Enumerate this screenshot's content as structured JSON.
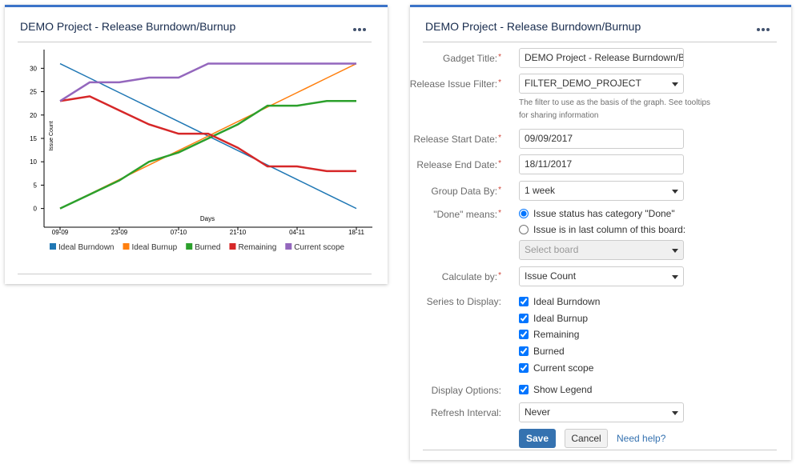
{
  "left_gadget": {
    "title": "DEMO Project - Release Burndown/Burnup"
  },
  "chart_data": {
    "type": "line",
    "x_label": "Days",
    "y_label": "Issue Count",
    "categories": [
      "09-09",
      null,
      "23-09",
      null,
      "07-10",
      null,
      "21-10",
      null,
      "04-11",
      null,
      "18-11"
    ],
    "ylim": [
      -4,
      34
    ],
    "yticks": [
      0,
      5,
      10,
      15,
      20,
      25,
      30
    ],
    "legend": "bottom",
    "series": [
      {
        "name": "Ideal Burndown",
        "color": "#1f77b4",
        "values": [
          31,
          27.9,
          24.8,
          21.7,
          18.6,
          15.5,
          12.4,
          9.3,
          6.2,
          3.1,
          0
        ]
      },
      {
        "name": "Ideal Burnup",
        "color": "#ff7f0e",
        "values": [
          0,
          3.1,
          6.2,
          9.3,
          12.4,
          15.5,
          18.6,
          21.7,
          24.8,
          27.9,
          31
        ]
      },
      {
        "name": "Burned",
        "color": "#2ca02c",
        "values": [
          0,
          3,
          6,
          10,
          12,
          15,
          18,
          22,
          22,
          23,
          23
        ]
      },
      {
        "name": "Remaining",
        "color": "#d62728",
        "values": [
          23,
          24,
          21,
          18,
          16,
          16,
          13,
          9,
          9,
          8,
          8
        ]
      },
      {
        "name": "Current scope",
        "color": "#9467bd",
        "values": [
          23,
          27,
          27,
          28,
          28,
          31,
          31,
          31,
          31,
          31,
          31
        ]
      }
    ]
  },
  "right_gadget": {
    "title": "DEMO Project - Release Burndown/Burnup",
    "required_marker": "*",
    "gadget_title": {
      "label": "Gadget Title:",
      "value": "DEMO Project - Release Burndown/Burnup"
    },
    "issue_filter": {
      "label": "Release Issue Filter:",
      "value": "FILTER_DEMO_PROJECT",
      "help": [
        "The filter to use as the basis of the graph. See tooltips",
        "for sharing information"
      ]
    },
    "start_date": {
      "label": "Release Start Date:",
      "value": "09/09/2017"
    },
    "end_date": {
      "label": "Release End Date:",
      "value": "18/11/2017"
    },
    "group_by": {
      "label": "Group Data By:",
      "value": "1 week"
    },
    "done_means": {
      "label": "\"Done\" means:",
      "options": [
        "Issue status has category \"Done\"",
        "Issue is in last column of this board:"
      ],
      "board_placeholder": "Select board"
    },
    "calculate_by": {
      "label": "Calculate by:",
      "value": "Issue Count"
    },
    "series_to_display": {
      "label": "Series to Display:",
      "options": [
        "Ideal Burndown",
        "Ideal Burnup",
        "Remaining",
        "Burned",
        "Current scope"
      ]
    },
    "display_options": {
      "label": "Display Options:",
      "option": "Show Legend"
    },
    "refresh_interval": {
      "label": "Refresh Interval:",
      "value": "Never"
    },
    "buttons": {
      "save": "Save",
      "cancel": "Cancel",
      "help": "Need help?"
    }
  }
}
